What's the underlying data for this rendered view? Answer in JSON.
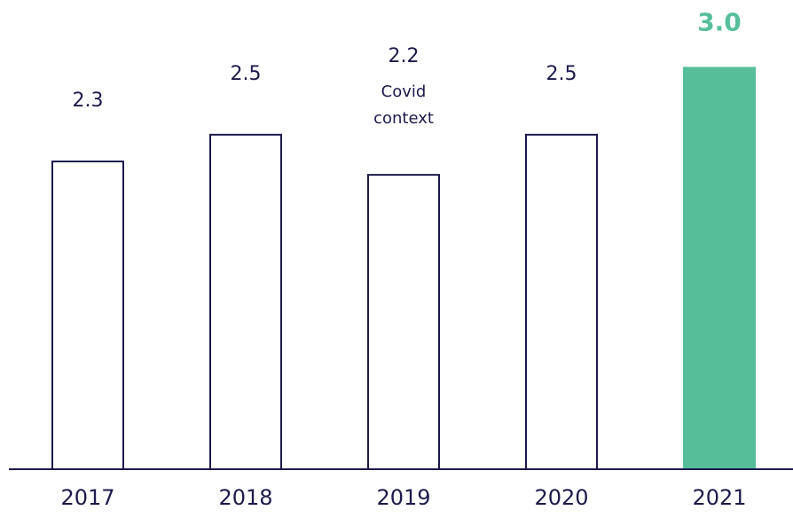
{
  "chart_data": {
    "type": "bar",
    "categories": [
      "2017",
      "2018",
      "2019",
      "2020",
      "2021"
    ],
    "values": [
      2.3,
      2.5,
      2.2,
      2.5,
      3.0
    ],
    "value_labels": [
      "2.3",
      "2.5",
      "2.2",
      "2.5",
      "3.0"
    ],
    "colors": [
      "#ffffff",
      "#ffffff",
      "#ffffff",
      "#ffffff",
      "#56bf9a"
    ],
    "edge_color": "#1c1a4a",
    "ylim": [
      0,
      3.5
    ],
    "annotations": [
      {
        "category": "2019",
        "lines": [
          "Covid",
          "context"
        ]
      }
    ]
  }
}
